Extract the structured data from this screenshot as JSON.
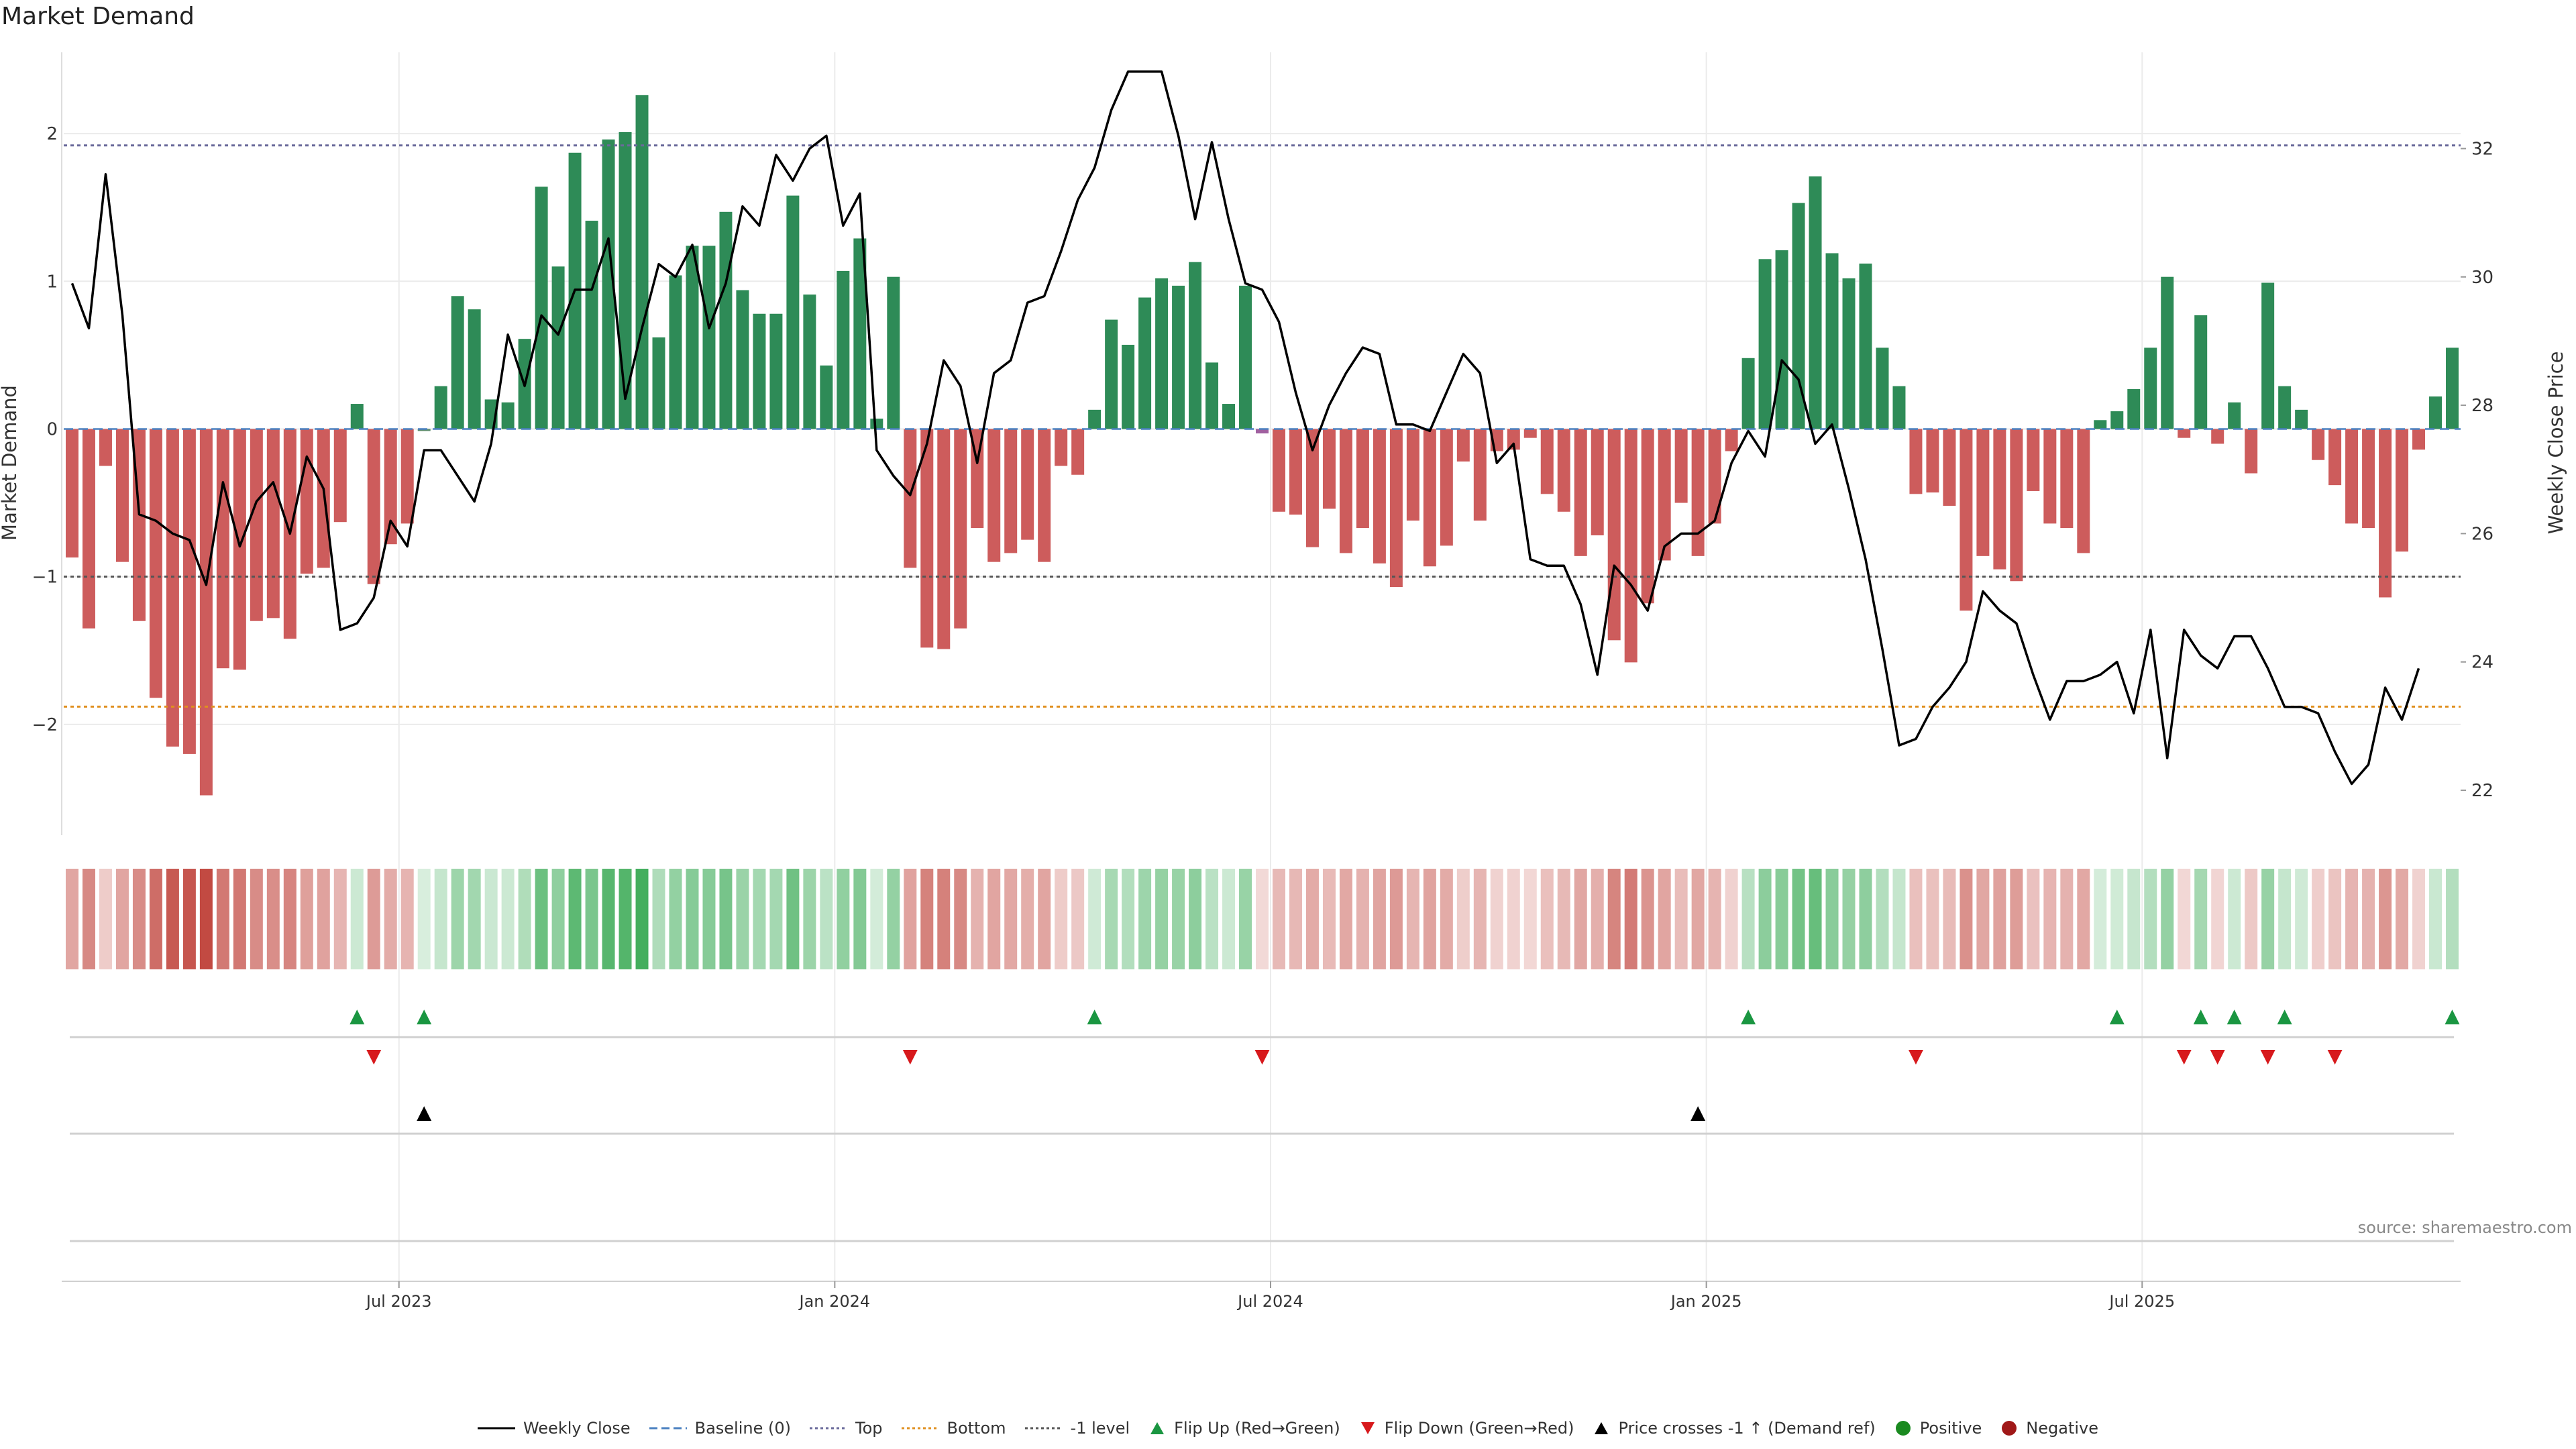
{
  "page_title": "Market Demand",
  "source": "source: sharemaestro.com",
  "colors": {
    "positive": "#2e8b57",
    "negative": "#cd5c5c",
    "price_line": "#000000",
    "top_line": "#6a6a9a",
    "bottom_line": "#e09020",
    "minus1_line": "#555555",
    "flip_up": "#1a9641",
    "flip_down": "#d7191c"
  },
  "legend": [
    {
      "label": "Weekly Close",
      "icon": "solid-line"
    },
    {
      "label": "Baseline (0)",
      "icon": "dashed-line"
    },
    {
      "label": "Top",
      "icon": "dotted-line"
    },
    {
      "label": "Bottom",
      "icon": "dotted-line"
    },
    {
      "label": "-1 level",
      "icon": "dotted-line"
    },
    {
      "label": "Flip Up (Red→Green)",
      "icon": "up-triangle"
    },
    {
      "label": "Flip Down (Green→Red)",
      "icon": "down-triangle"
    },
    {
      "label": "Price crosses -1 ↑ (Demand ref)",
      "icon": "up-triangle"
    },
    {
      "label": "Positive",
      "icon": "circle"
    },
    {
      "label": "Negative",
      "icon": "circle"
    }
  ],
  "chart_data": {
    "type": "bar",
    "ylabel": "Market Demand",
    "y2label": "Weekly Close Price",
    "ylim": [
      -2.75,
      2.55
    ],
    "yticks": [
      -2,
      -1,
      0,
      1,
      2
    ],
    "ytick_labels": [
      "−2",
      "−1",
      "0",
      "1",
      "2"
    ],
    "y2lim": [
      21.3,
      33.5
    ],
    "y2ticks": [
      22,
      24,
      26,
      28,
      30,
      32
    ],
    "x_ticks": [
      "Jul 2023",
      "Jan 2024",
      "Jul 2024",
      "Jan 2025",
      "Jul 2025"
    ],
    "x_tick_index": [
      20,
      46,
      72,
      98,
      124
    ],
    "top_level": 1.92,
    "bottom_level": -1.88,
    "minus1_level": -1.0,
    "grid": true,
    "legend_position": "bottom",
    "demand": [
      -0.87,
      -1.35,
      -0.25,
      -0.9,
      -1.3,
      -1.82,
      -2.15,
      -2.2,
      -2.48,
      -1.62,
      -1.63,
      -1.3,
      -1.28,
      -1.42,
      -0.98,
      -0.94,
      -0.63,
      0.17,
      -1.05,
      -0.78,
      -0.64,
      0.0,
      0.29,
      0.9,
      0.81,
      0.2,
      0.18,
      0.61,
      1.64,
      1.1,
      1.87,
      1.41,
      1.96,
      2.01,
      2.26,
      0.62,
      1.04,
      1.24,
      1.24,
      1.47,
      0.94,
      0.78,
      0.78,
      1.58,
      0.91,
      0.43,
      1.07,
      1.29,
      0.07,
      1.03,
      -0.94,
      -1.48,
      -1.49,
      -1.35,
      -0.67,
      -0.9,
      -0.84,
      -0.75,
      -0.9,
      -0.25,
      -0.31,
      0.13,
      0.74,
      0.57,
      0.89,
      1.02,
      0.97,
      1.13,
      0.45,
      0.17,
      0.97,
      -0.03,
      -0.56,
      -0.58,
      -0.8,
      -0.54,
      -0.84,
      -0.67,
      -0.91,
      -1.07,
      -0.62,
      -0.93,
      -0.79,
      -0.22,
      -0.62,
      -0.15,
      -0.14,
      -0.06,
      -0.44,
      -0.56,
      -0.86,
      -0.72,
      -1.43,
      -1.58,
      -1.18,
      -0.89,
      -0.5,
      -0.86,
      -0.64,
      -0.15,
      0.48,
      1.15,
      1.21,
      1.53,
      1.71,
      1.19,
      1.02,
      1.12,
      0.55,
      0.29,
      -0.44,
      -0.43,
      -0.52,
      -1.23,
      -0.86,
      -0.95,
      -1.03,
      -0.42,
      -0.64,
      -0.67,
      -0.84,
      0.06,
      0.12,
      0.27,
      0.55,
      1.03,
      -0.06,
      0.77,
      -0.1,
      0.18,
      -0.3,
      0.99,
      0.29,
      0.13,
      -0.21,
      -0.38,
      -0.64,
      -0.67,
      -1.14,
      -0.83,
      -0.14,
      0.22,
      0.55
    ],
    "price": [
      29.9,
      29.2,
      31.6,
      29.4,
      26.3,
      26.2,
      26.0,
      25.9,
      25.2,
      26.8,
      25.8,
      26.5,
      26.8,
      26.0,
      27.2,
      26.7,
      24.5,
      24.6,
      25.0,
      26.2,
      25.8,
      27.3,
      27.3,
      26.9,
      26.5,
      27.4,
      29.1,
      28.3,
      29.4,
      29.1,
      29.8,
      29.8,
      30.6,
      28.1,
      29.2,
      30.2,
      30.0,
      30.5,
      29.2,
      29.9,
      31.1,
      30.8,
      31.9,
      31.5,
      32.0,
      32.2,
      30.8,
      31.3,
      27.3,
      26.9,
      26.6,
      27.4,
      28.7,
      28.3,
      27.1,
      28.5,
      28.7,
      29.6,
      29.7,
      30.4,
      31.2,
      31.7,
      32.6,
      33.2,
      33.2,
      33.2,
      32.2,
      30.9,
      32.1,
      30.9,
      29.9,
      29.8,
      29.3,
      28.2,
      27.3,
      28.0,
      28.5,
      28.9,
      28.8,
      27.7,
      27.7,
      27.6,
      28.2,
      28.8,
      28.5,
      27.1,
      27.4,
      25.6,
      25.5,
      25.5,
      24.9,
      23.8,
      25.5,
      25.2,
      24.8,
      25.8,
      26.0,
      26.0,
      26.2,
      27.1,
      27.6,
      27.2,
      28.7,
      28.4,
      27.4,
      27.7,
      26.7,
      25.6,
      24.2,
      22.7,
      22.8,
      23.3,
      23.6,
      24.0,
      25.1,
      24.8,
      24.6,
      23.8,
      23.1,
      23.7,
      23.7,
      23.8,
      24.0,
      23.2,
      24.5,
      22.5,
      24.5,
      24.1,
      23.9,
      24.4,
      24.4,
      23.9,
      23.3,
      23.3,
      23.2,
      22.6,
      22.1,
      22.4,
      23.6,
      23.1,
      23.9
    ],
    "flip_up_index": [
      17,
      21,
      61,
      100,
      122,
      127,
      129,
      132,
      142
    ],
    "flip_down_index": [
      18,
      50,
      71,
      110,
      126,
      128,
      131,
      135
    ],
    "price_cross_index": [
      21,
      97
    ]
  }
}
